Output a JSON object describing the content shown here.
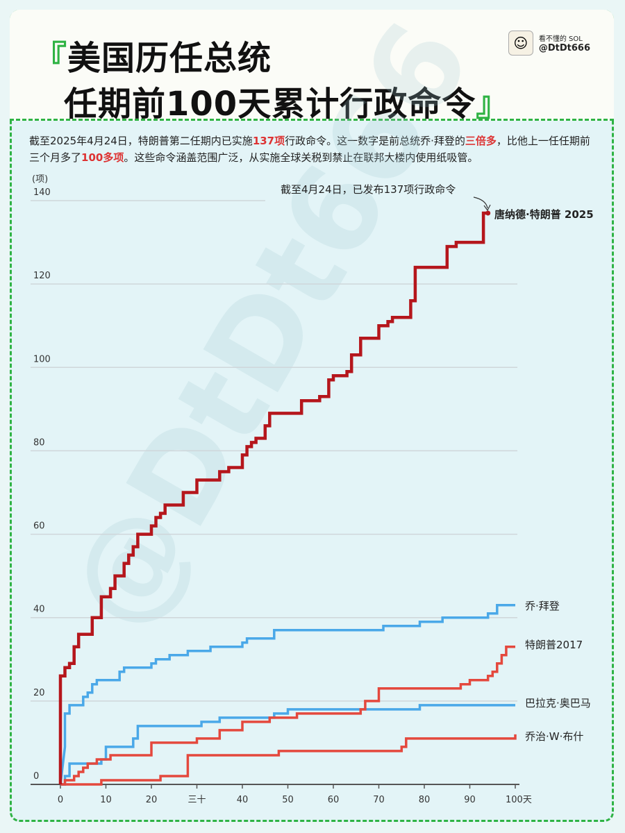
{
  "header": {
    "title_line1_open": "『",
    "title_line1": "美国历任总统",
    "title_line2": "任期前100天累计行政命令",
    "title_line2_close": "』",
    "author_name": "看不懂的 SOL",
    "author_handle": "@DtDt666"
  },
  "description": {
    "p1": "截至2025年4月24日，特朗普第二任期内已实施",
    "h1": "137项",
    "p2": "行政命令。这一数字是前总统乔·拜登的",
    "h2": "三倍多",
    "p3": "，比他上一任任期前三个月多了",
    "h3": "100多项",
    "p4": "。这些命令涵盖范围广泛，从实施全球关税到禁止在联邦大楼内使用纸吸管。"
  },
  "watermark": "@DtDt666",
  "colors": {
    "trump2025": "#b5161c",
    "biden": "#4aa8e8",
    "trump2017": "#e4483d",
    "obama": "#4aa8e8",
    "bush": "#e4483d",
    "grid": "#cfd6da",
    "frame": "#2fb344"
  },
  "chart_data": {
    "type": "line",
    "title": "美国历任总统任期前100天累计行政命令",
    "ylabel": "(项)",
    "xlabel": "天",
    "xlim": [
      0,
      100
    ],
    "ylim": [
      0,
      140
    ],
    "y_ticks": [
      0,
      20,
      40,
      60,
      80,
      100,
      120,
      140
    ],
    "x_ticks": [
      "0",
      "10",
      "20",
      "三十",
      "40",
      "50",
      "60",
      "70",
      "80",
      "90",
      "100天"
    ],
    "annotation": "截至4月24日，已发布137项行政命令",
    "step": true,
    "series": [
      {
        "name": "唐纳德·特朗普 2025",
        "points": [
          [
            0,
            0
          ],
          [
            0,
            26
          ],
          [
            1,
            26
          ],
          [
            1,
            28
          ],
          [
            2,
            28
          ],
          [
            2,
            29
          ],
          [
            3,
            29
          ],
          [
            3,
            33
          ],
          [
            4,
            33
          ],
          [
            4,
            36
          ],
          [
            7,
            36
          ],
          [
            7,
            40
          ],
          [
            9,
            40
          ],
          [
            9,
            45
          ],
          [
            11,
            45
          ],
          [
            11,
            47
          ],
          [
            12,
            47
          ],
          [
            12,
            50
          ],
          [
            14,
            50
          ],
          [
            14,
            53
          ],
          [
            15,
            53
          ],
          [
            15,
            55
          ],
          [
            16,
            55
          ],
          [
            16,
            57
          ],
          [
            17,
            57
          ],
          [
            17,
            60
          ],
          [
            20,
            60
          ],
          [
            20,
            62
          ],
          [
            21,
            62
          ],
          [
            21,
            64
          ],
          [
            22,
            64
          ],
          [
            22,
            65
          ],
          [
            23,
            65
          ],
          [
            23,
            67
          ],
          [
            27,
            67
          ],
          [
            27,
            70
          ],
          [
            30,
            70
          ],
          [
            30,
            73
          ],
          [
            35,
            73
          ],
          [
            35,
            75
          ],
          [
            37,
            75
          ],
          [
            37,
            76
          ],
          [
            40,
            76
          ],
          [
            40,
            79
          ],
          [
            41,
            79
          ],
          [
            41,
            81
          ],
          [
            42,
            81
          ],
          [
            42,
            82
          ],
          [
            43,
            82
          ],
          [
            43,
            83
          ],
          [
            45,
            83
          ],
          [
            45,
            86
          ],
          [
            46,
            86
          ],
          [
            46,
            89
          ],
          [
            53,
            89
          ],
          [
            53,
            92
          ],
          [
            57,
            92
          ],
          [
            57,
            93
          ],
          [
            59,
            93
          ],
          [
            59,
            97
          ],
          [
            60,
            97
          ],
          [
            60,
            98
          ],
          [
            63,
            98
          ],
          [
            63,
            99
          ],
          [
            64,
            99
          ],
          [
            64,
            103
          ],
          [
            66,
            103
          ],
          [
            66,
            107
          ],
          [
            70,
            107
          ],
          [
            70,
            110
          ],
          [
            72,
            110
          ],
          [
            72,
            111
          ],
          [
            73,
            111
          ],
          [
            73,
            112
          ],
          [
            77,
            112
          ],
          [
            77,
            116
          ],
          [
            78,
            116
          ],
          [
            78,
            124
          ],
          [
            85,
            124
          ],
          [
            85,
            129
          ],
          [
            87,
            129
          ],
          [
            87,
            130
          ],
          [
            93,
            130
          ],
          [
            93,
            137
          ],
          [
            94,
            137
          ]
        ]
      },
      {
        "name": "乔·拜登",
        "points": [
          [
            0,
            0
          ],
          [
            1,
            9
          ],
          [
            1,
            17
          ],
          [
            2,
            17
          ],
          [
            2,
            19
          ],
          [
            5,
            19
          ],
          [
            5,
            21
          ],
          [
            6,
            21
          ],
          [
            6,
            22
          ],
          [
            7,
            22
          ],
          [
            7,
            24
          ],
          [
            8,
            24
          ],
          [
            8,
            25
          ],
          [
            13,
            25
          ],
          [
            13,
            27
          ],
          [
            14,
            27
          ],
          [
            14,
            28
          ],
          [
            20,
            28
          ],
          [
            20,
            29
          ],
          [
            21,
            29
          ],
          [
            21,
            30
          ],
          [
            24,
            30
          ],
          [
            24,
            31
          ],
          [
            28,
            31
          ],
          [
            28,
            32
          ],
          [
            33,
            32
          ],
          [
            33,
            33
          ],
          [
            40,
            33
          ],
          [
            40,
            34
          ],
          [
            41,
            34
          ],
          [
            41,
            35
          ],
          [
            47,
            35
          ],
          [
            47,
            37
          ],
          [
            71,
            37
          ],
          [
            71,
            38
          ],
          [
            79,
            38
          ],
          [
            79,
            39
          ],
          [
            84,
            39
          ],
          [
            84,
            40
          ],
          [
            94,
            40
          ],
          [
            94,
            41
          ],
          [
            96,
            41
          ],
          [
            96,
            43
          ],
          [
            100,
            43
          ]
        ]
      },
      {
        "name": "特朗普2017",
        "points": [
          [
            0,
            0
          ],
          [
            1,
            0
          ],
          [
            1,
            1
          ],
          [
            3,
            1
          ],
          [
            3,
            2
          ],
          [
            4,
            2
          ],
          [
            4,
            3
          ],
          [
            5,
            3
          ],
          [
            5,
            4
          ],
          [
            6,
            4
          ],
          [
            6,
            5
          ],
          [
            8,
            5
          ],
          [
            8,
            6
          ],
          [
            11,
            6
          ],
          [
            11,
            7
          ],
          [
            20,
            7
          ],
          [
            20,
            10
          ],
          [
            30,
            10
          ],
          [
            30,
            11
          ],
          [
            35,
            11
          ],
          [
            35,
            13
          ],
          [
            40,
            13
          ],
          [
            40,
            15
          ],
          [
            46,
            15
          ],
          [
            46,
            16
          ],
          [
            52,
            16
          ],
          [
            52,
            17
          ],
          [
            66,
            17
          ],
          [
            66,
            18
          ],
          [
            67,
            18
          ],
          [
            67,
            20
          ],
          [
            70,
            20
          ],
          [
            70,
            23
          ],
          [
            88,
            23
          ],
          [
            88,
            24
          ],
          [
            90,
            24
          ],
          [
            90,
            25
          ],
          [
            94,
            25
          ],
          [
            94,
            26
          ],
          [
            95,
            26
          ],
          [
            95,
            27
          ],
          [
            96,
            27
          ],
          [
            96,
            29
          ],
          [
            97,
            29
          ],
          [
            97,
            31
          ],
          [
            98,
            31
          ],
          [
            98,
            33
          ],
          [
            100,
            33
          ]
        ]
      },
      {
        "name": "巴拉克·奥巴马",
        "points": [
          [
            0,
            0
          ],
          [
            1,
            0
          ],
          [
            1,
            2
          ],
          [
            2,
            2
          ],
          [
            2,
            5
          ],
          [
            9,
            5
          ],
          [
            9,
            6
          ],
          [
            10,
            6
          ],
          [
            10,
            9
          ],
          [
            16,
            9
          ],
          [
            16,
            11
          ],
          [
            17,
            11
          ],
          [
            17,
            14
          ],
          [
            31,
            14
          ],
          [
            31,
            15
          ],
          [
            35,
            15
          ],
          [
            35,
            16
          ],
          [
            47,
            16
          ],
          [
            47,
            17
          ],
          [
            50,
            17
          ],
          [
            50,
            18
          ],
          [
            79,
            18
          ],
          [
            79,
            19
          ],
          [
            100,
            19
          ]
        ]
      },
      {
        "name": "乔治·W·布什",
        "points": [
          [
            0,
            0
          ],
          [
            9,
            0
          ],
          [
            9,
            1
          ],
          [
            22,
            1
          ],
          [
            22,
            2
          ],
          [
            28,
            2
          ],
          [
            28,
            7
          ],
          [
            48,
            7
          ],
          [
            48,
            8
          ],
          [
            75,
            8
          ],
          [
            75,
            9
          ],
          [
            76,
            9
          ],
          [
            76,
            11
          ],
          [
            100,
            11
          ],
          [
            100,
            12
          ]
        ]
      }
    ]
  }
}
